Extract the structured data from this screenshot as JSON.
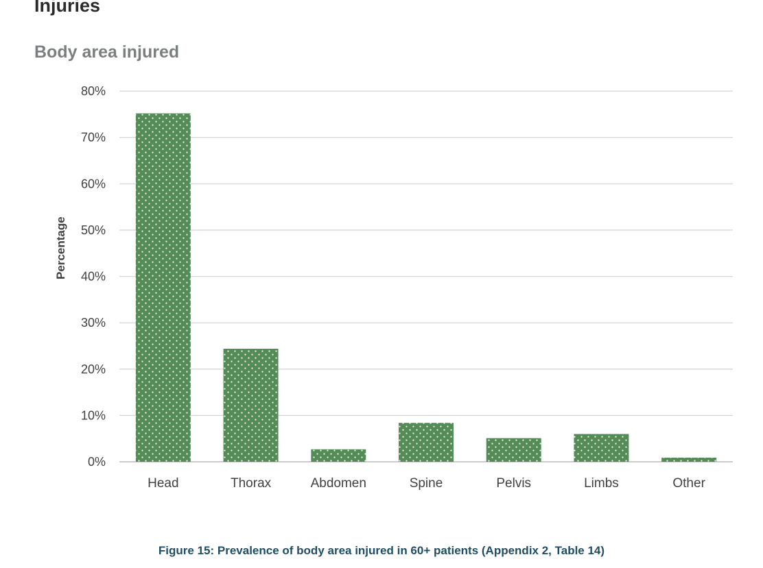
{
  "page": {
    "section_heading": "Injuries",
    "figure_caption": "Figure 15: Prevalence of body area injured in 60+ patients (Appendix 2, Table 14)"
  },
  "colors": {
    "bar": "#558b57",
    "bar_dots": "#ffffff",
    "grid": "#d4d4d4",
    "axis_text": "#404040",
    "subtitle": "#7b7f80",
    "caption": "#1f4d63"
  },
  "chart_data": {
    "type": "bar",
    "title": "Body area injured",
    "xlabel": "",
    "ylabel": "Percentage",
    "categories": [
      "Head",
      "Thorax",
      "Abdomen",
      "Spine",
      "Pelvis",
      "Limbs",
      "Other"
    ],
    "values": [
      75.2,
      24.4,
      2.7,
      8.4,
      5.1,
      6.0,
      0.9
    ],
    "ylim": [
      0,
      80
    ],
    "yticks": [
      0,
      10,
      20,
      30,
      40,
      50,
      60,
      70,
      80
    ],
    "ytick_labels": [
      "0%",
      "10%",
      "20%",
      "30%",
      "40%",
      "50%",
      "60%",
      "70%",
      "80%"
    ],
    "grid": true,
    "legend": "none"
  }
}
